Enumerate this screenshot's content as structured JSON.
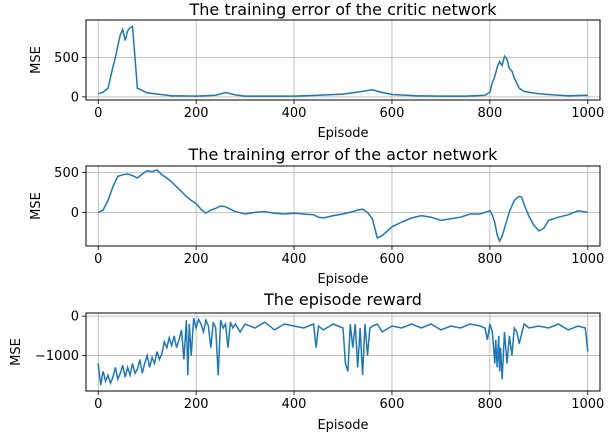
{
  "chart_data": [
    {
      "type": "line",
      "title": "The training error of the critic network",
      "xlabel": "Episode",
      "ylabel": "MSE",
      "xlim": [
        -25,
        1025
      ],
      "ylim": [
        -40,
        980
      ],
      "xticks": [
        0,
        200,
        400,
        600,
        800,
        1000
      ],
      "yticks": [
        0,
        500
      ],
      "grid": true,
      "color": "#1f77b4",
      "x": [
        0,
        10,
        20,
        30,
        35,
        40,
        45,
        50,
        55,
        60,
        65,
        70,
        80,
        100,
        150,
        200,
        240,
        260,
        280,
        300,
        400,
        450,
        500,
        540,
        560,
        580,
        600,
        650,
        700,
        750,
        790,
        800,
        805,
        810,
        815,
        820,
        825,
        830,
        835,
        840,
        845,
        850,
        860,
        870,
        880,
        900,
        930,
        960,
        1000
      ],
      "y": [
        40,
        60,
        110,
        380,
        500,
        650,
        790,
        860,
        720,
        840,
        880,
        900,
        110,
        50,
        15,
        10,
        20,
        55,
        25,
        10,
        10,
        20,
        35,
        70,
        90,
        55,
        30,
        15,
        10,
        10,
        20,
        60,
        180,
        260,
        380,
        450,
        400,
        520,
        480,
        360,
        330,
        240,
        110,
        70,
        60,
        40,
        25,
        15,
        20
      ]
    },
    {
      "type": "line",
      "title": "The training error of the actor network",
      "xlabel": "Episode",
      "ylabel": "MSE",
      "xlim": [
        -25,
        1025
      ],
      "ylim": [
        -420,
        580
      ],
      "xticks": [
        0,
        200,
        400,
        600,
        800,
        1000
      ],
      "yticks": [
        0,
        500
      ],
      "grid": true,
      "color": "#1f77b4",
      "x": [
        0,
        10,
        20,
        30,
        40,
        50,
        60,
        70,
        80,
        90,
        100,
        110,
        120,
        130,
        140,
        150,
        160,
        170,
        180,
        190,
        200,
        210,
        220,
        230,
        240,
        250,
        260,
        280,
        300,
        320,
        340,
        360,
        380,
        400,
        420,
        440,
        450,
        460,
        480,
        500,
        520,
        530,
        540,
        550,
        560,
        565,
        570,
        580,
        600,
        620,
        640,
        660,
        680,
        700,
        720,
        740,
        760,
        780,
        800,
        805,
        810,
        815,
        820,
        825,
        830,
        840,
        850,
        855,
        860,
        865,
        870,
        880,
        890,
        900,
        910,
        920,
        940,
        960,
        980,
        1000
      ],
      "y": [
        0,
        30,
        150,
        320,
        450,
        470,
        480,
        460,
        430,
        480,
        520,
        510,
        530,
        470,
        430,
        380,
        320,
        260,
        200,
        150,
        110,
        40,
        -10,
        30,
        50,
        80,
        70,
        10,
        -20,
        0,
        10,
        -10,
        -20,
        -10,
        -20,
        -30,
        -60,
        -70,
        -40,
        -20,
        10,
        30,
        40,
        0,
        -80,
        -200,
        -320,
        -290,
        -180,
        -120,
        -70,
        -40,
        -60,
        -100,
        -80,
        -60,
        -20,
        -20,
        20,
        -30,
        -130,
        -280,
        -360,
        -300,
        -200,
        10,
        150,
        180,
        200,
        190,
        100,
        -50,
        -160,
        -230,
        -200,
        -100,
        -60,
        -30,
        20,
        0
      ]
    },
    {
      "type": "line",
      "title": "The episode reward",
      "xlabel": "Episode",
      "ylabel": "MSE",
      "xlim": [
        -25,
        1025
      ],
      "ylim": [
        -1900,
        80
      ],
      "xticks": [
        0,
        200,
        400,
        600,
        800,
        1000
      ],
      "yticks": [
        -1000,
        0
      ],
      "ytick_labels": [
        "−1000",
        "0"
      ],
      "grid": true,
      "color": "#1f77b4",
      "x": [
        0,
        5,
        10,
        15,
        20,
        25,
        30,
        35,
        40,
        45,
        50,
        55,
        60,
        65,
        70,
        75,
        80,
        85,
        90,
        95,
        100,
        105,
        110,
        115,
        120,
        125,
        130,
        135,
        140,
        145,
        150,
        155,
        160,
        165,
        170,
        175,
        180,
        183,
        186,
        190,
        195,
        200,
        205,
        210,
        215,
        220,
        225,
        230,
        235,
        240,
        245,
        250,
        255,
        260,
        265,
        270,
        275,
        280,
        290,
        300,
        320,
        340,
        360,
        380,
        400,
        420,
        440,
        445,
        450,
        460,
        480,
        500,
        505,
        510,
        515,
        520,
        525,
        530,
        535,
        540,
        545,
        550,
        555,
        560,
        570,
        580,
        600,
        620,
        640,
        660,
        680,
        700,
        720,
        740,
        760,
        780,
        790,
        795,
        800,
        805,
        810,
        812,
        815,
        818,
        820,
        822,
        825,
        830,
        835,
        840,
        845,
        850,
        855,
        860,
        870,
        880,
        900,
        920,
        940,
        960,
        980,
        995,
        1000
      ],
      "y": [
        -1200,
        -1750,
        -1400,
        -1650,
        -1500,
        -1700,
        -1550,
        -1300,
        -1600,
        -1450,
        -1250,
        -1550,
        -1300,
        -1500,
        -1200,
        -1450,
        -1350,
        -1100,
        -1450,
        -1200,
        -1000,
        -1300,
        -1050,
        -1200,
        -900,
        -1100,
        -950,
        -650,
        -800,
        -550,
        -750,
        -500,
        -800,
        -600,
        -350,
        -1100,
        -100,
        -1500,
        -200,
        -1000,
        -50,
        -300,
        -80,
        -200,
        -400,
        -100,
        -250,
        -800,
        -150,
        -300,
        -1500,
        -100,
        -300,
        -200,
        -800,
        -150,
        -300,
        -200,
        -400,
        -200,
        -300,
        -150,
        -350,
        -200,
        -250,
        -300,
        -200,
        -800,
        -250,
        -350,
        -200,
        -300,
        -1200,
        -1400,
        -200,
        -800,
        -200,
        -1300,
        -300,
        -1500,
        -200,
        -1000,
        -300,
        -250,
        -200,
        -400,
        -250,
        -300,
        -200,
        -300,
        -200,
        -350,
        -250,
        -300,
        -200,
        -250,
        -300,
        -600,
        -200,
        -400,
        -1200,
        -600,
        -1300,
        -500,
        -1400,
        -800,
        -1600,
        -400,
        -1200,
        -500,
        -1000,
        -300,
        -400,
        -700,
        -200,
        -300,
        -250,
        -300,
        -200,
        -350,
        -250,
        -300,
        -900
      ]
    }
  ]
}
